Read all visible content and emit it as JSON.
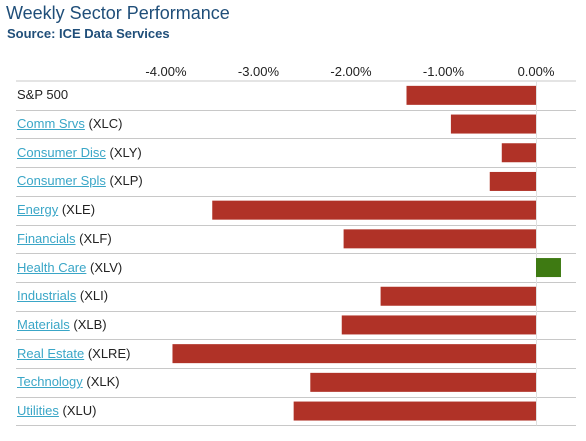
{
  "header": {
    "title": "Weekly Sector Performance",
    "subtitle": "Source: ICE Data Services"
  },
  "chart_data": {
    "type": "bar",
    "orientation": "horizontal",
    "title": "Weekly Sector Performance",
    "subtitle": "Source: ICE Data Services",
    "xlim": [
      -4.65,
      0.4
    ],
    "x_ticks": [
      -4.0,
      -3.0,
      -2.0,
      -1.0,
      0.0
    ],
    "x_tick_labels": [
      "-4.00%",
      "-3.00%",
      "-2.00%",
      "-1.00%",
      "0.00%"
    ],
    "grid": "horizontal row separators",
    "categories": [
      {
        "name": "S&P 500",
        "ticker": "",
        "link": false
      },
      {
        "name": "Comm Srvs",
        "ticker": "(XLC)",
        "link": true
      },
      {
        "name": "Consumer Disc",
        "ticker": "(XLY)",
        "link": true
      },
      {
        "name": "Consumer Spls",
        "ticker": "(XLP)",
        "link": true
      },
      {
        "name": "Energy",
        "ticker": "(XLE)",
        "link": true
      },
      {
        "name": "Financials",
        "ticker": "(XLF)",
        "link": true
      },
      {
        "name": "Health Care",
        "ticker": "(XLV)",
        "link": true
      },
      {
        "name": "Industrials",
        "ticker": "(XLI)",
        "link": true
      },
      {
        "name": "Materials",
        "ticker": "(XLB)",
        "link": true
      },
      {
        "name": "Real Estate",
        "ticker": "(XLRE)",
        "link": true
      },
      {
        "name": "Technology",
        "ticker": "(XLK)",
        "link": true
      },
      {
        "name": "Utilities",
        "ticker": "(XLU)",
        "link": true
      }
    ],
    "values": [
      -1.4,
      -0.92,
      -0.37,
      -0.5,
      -3.5,
      -2.08,
      0.27,
      -1.68,
      -2.1,
      -3.93,
      -2.44,
      -2.62
    ],
    "colors": {
      "negative": "#b03227",
      "positive": "#3e7a12",
      "link": "#3aa6c7",
      "title": "#1f4e79",
      "grid": "#c8c8c8"
    }
  }
}
